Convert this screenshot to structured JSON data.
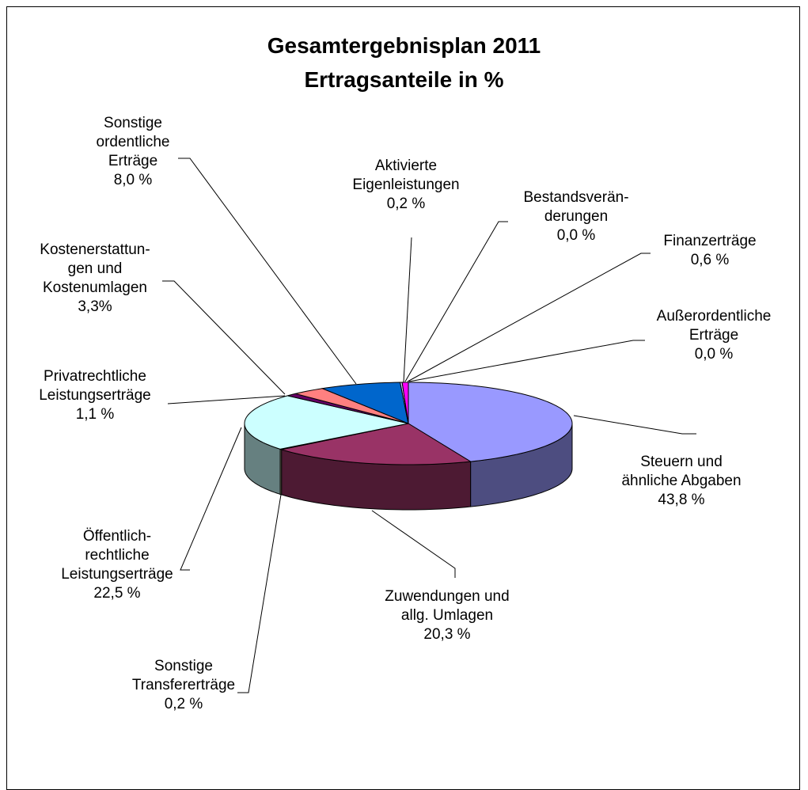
{
  "chart_data": {
    "type": "pie",
    "title": "Gesamtergebnisplan 2011\nErtragsanteile in %",
    "categories": [
      "Steuern und\nähnliche Abgaben",
      "Zuwendungen und\nallg. Umlagen",
      "Sonstige\nTransfererträge",
      "Öffentlich-\nrechtliche\nLeistungserträge",
      "Privatrechtliche\nLeistungserträge",
      "Kostenerstattun-\ngen und\nKostenumlagen",
      "Sonstige\nordentliche\nErträge",
      "Aktivierte\nEigenleistungen",
      "Bestandsverän-\nderungen",
      "Finanzerträge",
      "Außerordentliche\nErträge"
    ],
    "values": [
      43.8,
      20.3,
      0.2,
      22.5,
      1.1,
      3.3,
      8.0,
      0.2,
      0.0,
      0.6,
      0.0
    ],
    "value_labels": [
      "43,8 %",
      "20,3 %",
      "0,2 %",
      "22,5 %",
      "1,1 %",
      "3,3%",
      "8,0 %",
      "0,2 %",
      "0,0 %",
      "0,6 %",
      "0,0 %"
    ],
    "colors": [
      "#9999ff",
      "#993366",
      "#ffffcc",
      "#ccffff",
      "#660066",
      "#ff8080",
      "#0066cc",
      "#ccccff",
      "#000080",
      "#ff00ff",
      "#ffff00"
    ]
  }
}
